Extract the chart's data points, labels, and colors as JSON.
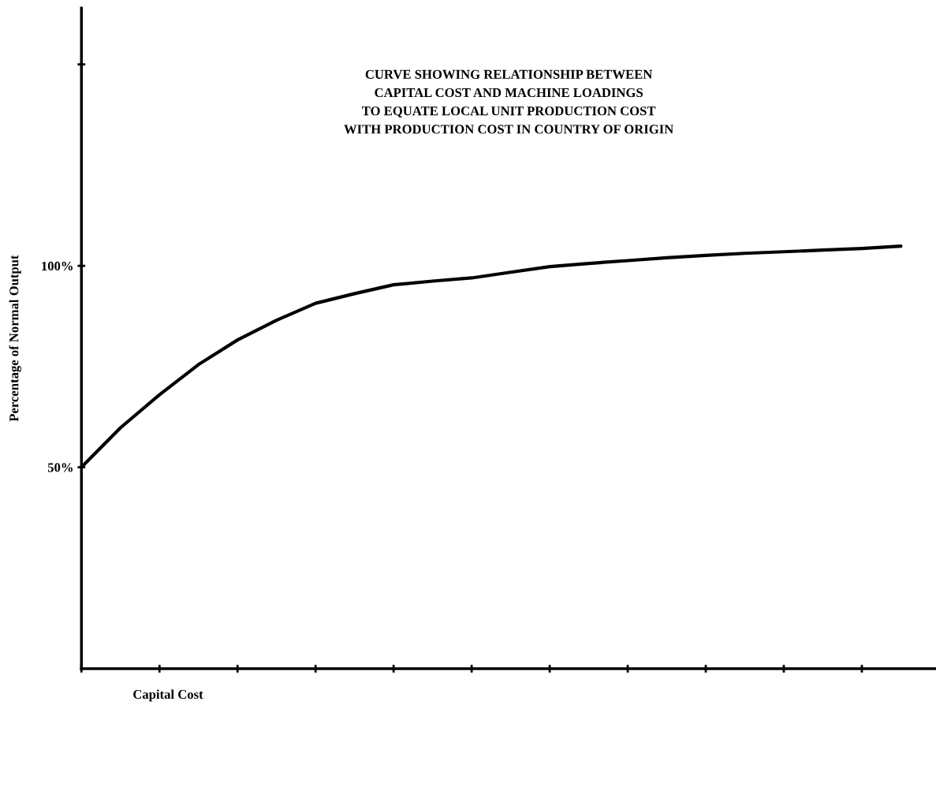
{
  "chart_data": {
    "type": "line",
    "title": "CURVE SHOWING RELATIONSHIP BETWEEN\nCAPITAL COST AND MACHINE LOADINGS\nTO EQUATE LOCAL UNIT PRODUCTION COST\nWITH PRODUCTION COST IN COUNTRY OF ORIGIN",
    "xlabel": "Capital Cost",
    "ylabel": "Percentage of Normal Output",
    "categories": [
      null,
      null,
      null,
      null,
      null,
      null,
      null,
      null,
      null,
      null,
      null,
      null,
      null,
      null,
      null,
      null,
      null,
      null,
      null,
      null,
      null,
      null
    ],
    "series": [
      {
        "color": "#000000",
        "values": [
          50,
          59.8,
          68,
          75.5,
          81.6,
          86.5,
          90.7,
          93.1,
          95.3,
          96.2,
          97.0,
          98.4,
          99.8,
          100.6,
          101.3,
          102.0,
          102.6,
          103.1,
          103.5,
          103.9,
          104.3,
          104.9
        ]
      }
    ],
    "ylim": [
      0,
      164
    ],
    "yticks": [
      {
        "value": 50,
        "label": "50%"
      },
      {
        "value": 100,
        "label": "100%"
      },
      {
        "value": 150,
        "label": null
      }
    ],
    "grid": false,
    "legend": false,
    "marker": "none",
    "line_style": "solid"
  }
}
